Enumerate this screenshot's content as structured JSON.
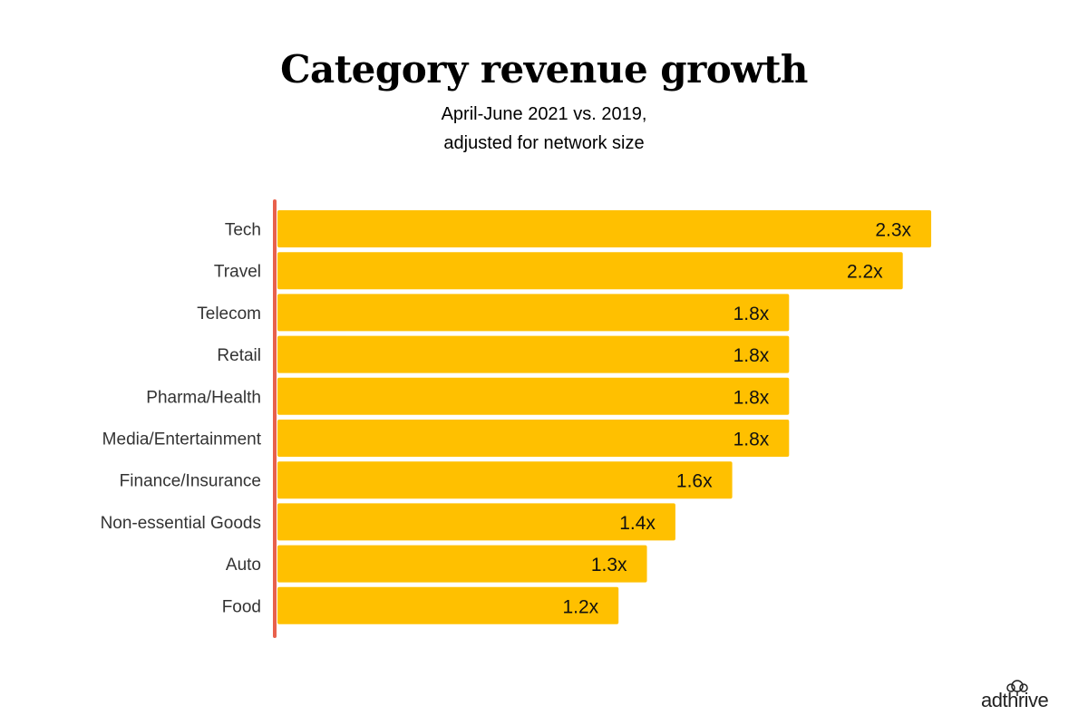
{
  "title": "Category revenue growth",
  "subtitle_lines": [
    "April-June 2021 vs. 2019,",
    "adjusted for network size"
  ],
  "colors": {
    "bar": "#FFC000",
    "axis": "#E8604C",
    "background": "#FFFFFF"
  },
  "logo": {
    "text": "adthrive",
    "icon": "tree-icon"
  },
  "chart_data": {
    "type": "bar",
    "orientation": "horizontal",
    "title": "Category revenue growth",
    "subtitle": "April-June 2021 vs. 2019, adjusted for network size",
    "categories": [
      "Tech",
      "Travel",
      "Telecom",
      "Retail",
      "Pharma/Health",
      "Media/Entertainment",
      "Finance/Insurance",
      "Non-essential Goods",
      "Auto",
      "Food"
    ],
    "values": [
      2.3,
      2.2,
      1.8,
      1.8,
      1.8,
      1.8,
      1.6,
      1.4,
      1.3,
      1.2
    ],
    "value_labels": [
      "2.3x",
      "2.2x",
      "1.8x",
      "1.8x",
      "1.8x",
      "1.8x",
      "1.6x",
      "1.4x",
      "1.3x",
      "1.2x"
    ],
    "xlim": [
      0,
      2.3
    ],
    "grid": false,
    "legend": "none"
  }
}
